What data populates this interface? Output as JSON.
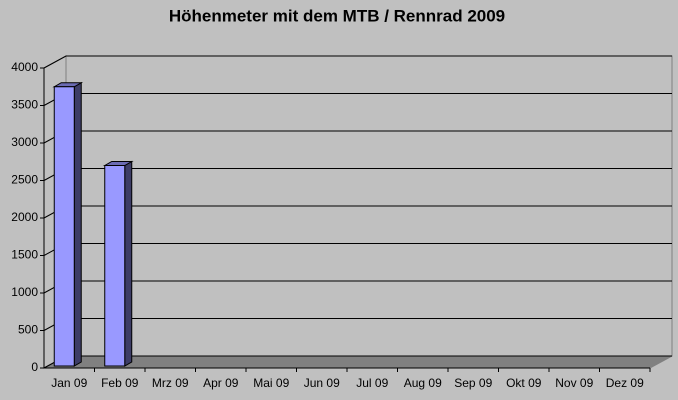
{
  "chart_data": {
    "type": "bar",
    "title": "Höhenmeter mit dem MTB / Rennrad 2009",
    "categories": [
      "Jan 09",
      "Feb 09",
      "Mrz 09",
      "Apr 09",
      "Mai 09",
      "Jun 09",
      "Jul 09",
      "Aug 09",
      "Sep 09",
      "Okt 09",
      "Nov 09",
      "Dez 09"
    ],
    "values": [
      3750,
      2700,
      null,
      null,
      null,
      null,
      null,
      null,
      null,
      null,
      null,
      null
    ],
    "color": "#9999ff",
    "ylim": [
      0,
      4000
    ],
    "yticks": [
      0,
      500,
      1000,
      1500,
      2000,
      2500,
      3000,
      3500,
      4000
    ],
    "grid": true
  }
}
